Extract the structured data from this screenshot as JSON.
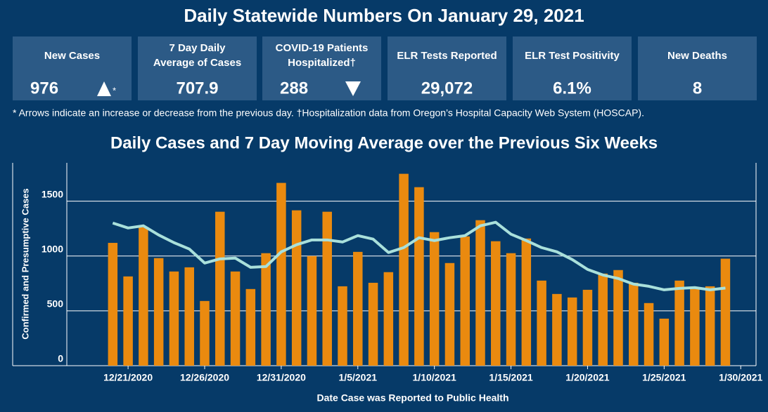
{
  "header": {
    "title": "Daily Statewide Numbers On January 29, 2021"
  },
  "cards": [
    {
      "label": "New Cases",
      "value": "976",
      "marker": "*"
    },
    {
      "label": "7 Day Daily Average of Cases",
      "value": "707.9"
    },
    {
      "label": "COVID-19 Patients Hospitalized†",
      "value": "288"
    },
    {
      "label": "ELR Tests Reported",
      "value": "29,072"
    },
    {
      "label": "ELR Test Positivity",
      "value": "6.1%"
    },
    {
      "label": "New Deaths",
      "value": "8"
    }
  ],
  "footnote": "* Arrows indicate an increase or decrease from the previous day. †Hospitalization data from Oregon’s Hospital Capacity Web System (HOSCAP).",
  "chart_data": {
    "type": "bar",
    "title": "Daily Cases and 7 Day Moving Average over the Previous Six Weeks",
    "x_label": "Date Case was Reported to Public Health",
    "y_label": "Confirmed and Presumptive Cases",
    "x": [
      "2020-12-20",
      "2020-12-21",
      "2020-12-22",
      "2020-12-23",
      "2020-12-24",
      "2020-12-25",
      "2020-12-26",
      "2020-12-27",
      "2020-12-28",
      "2020-12-29",
      "2020-12-30",
      "2020-12-31",
      "2021-01-01",
      "2021-01-02",
      "2021-01-03",
      "2021-01-04",
      "2021-01-05",
      "2021-01-06",
      "2021-01-07",
      "2021-01-08",
      "2021-01-09",
      "2021-01-10",
      "2021-01-11",
      "2021-01-12",
      "2021-01-13",
      "2021-01-14",
      "2021-01-15",
      "2021-01-16",
      "2021-01-17",
      "2021-01-18",
      "2021-01-19",
      "2021-01-20",
      "2021-01-21",
      "2021-01-22",
      "2021-01-23",
      "2021-01-24",
      "2021-01-25",
      "2021-01-26",
      "2021-01-27",
      "2021-01-28",
      "2021-01-29"
    ],
    "series": [
      {
        "name": "Daily Cases",
        "type": "bar",
        "color": "#ea8a0f",
        "values": [
          1120,
          814,
          1263,
          981,
          859,
          897,
          590,
          1404,
          859,
          699,
          1026,
          1667,
          1417,
          1000,
          1404,
          724,
          1038,
          756,
          853,
          1750,
          1628,
          1218,
          936,
          1179,
          1327,
          1135,
          1026,
          1160,
          776,
          654,
          622,
          692,
          840,
          872,
          756,
          571,
          429,
          776,
          699,
          724,
          976
        ]
      },
      {
        "name": "7 Day Moving Average",
        "type": "line",
        "color": "#a9e0db",
        "values": [
          1301,
          1256,
          1276,
          1192,
          1122,
          1064,
          936,
          974,
          981,
          897,
          904,
          1038,
          1103,
          1147,
          1147,
          1128,
          1186,
          1154,
          1032,
          1077,
          1167,
          1141,
          1167,
          1186,
          1276,
          1308,
          1199,
          1141,
          1077,
          1038,
          968,
          878,
          827,
          795,
          744,
          724,
          692,
          705,
          712,
          692,
          707.9
        ]
      }
    ],
    "xlim": [
      "2020-12-17",
      "2021-01-31"
    ],
    "xticks": [
      {
        "value": "2020-12-21",
        "label": "12/21/2020"
      },
      {
        "value": "2020-12-26",
        "label": "12/26/2020"
      },
      {
        "value": "2020-12-31",
        "label": "12/31/2020"
      },
      {
        "value": "2021-01-05",
        "label": "1/5/2021"
      },
      {
        "value": "2021-01-10",
        "label": "1/10/2021"
      },
      {
        "value": "2021-01-15",
        "label": "1/15/2021"
      },
      {
        "value": "2021-01-20",
        "label": "1/20/2021"
      },
      {
        "value": "2021-01-25",
        "label": "1/25/2021"
      },
      {
        "value": "2021-01-30",
        "label": "1/30/2021"
      }
    ],
    "ylim": [
      0,
      1850
    ],
    "yticks": [
      0,
      500,
      1000,
      1500
    ],
    "grid": true
  }
}
